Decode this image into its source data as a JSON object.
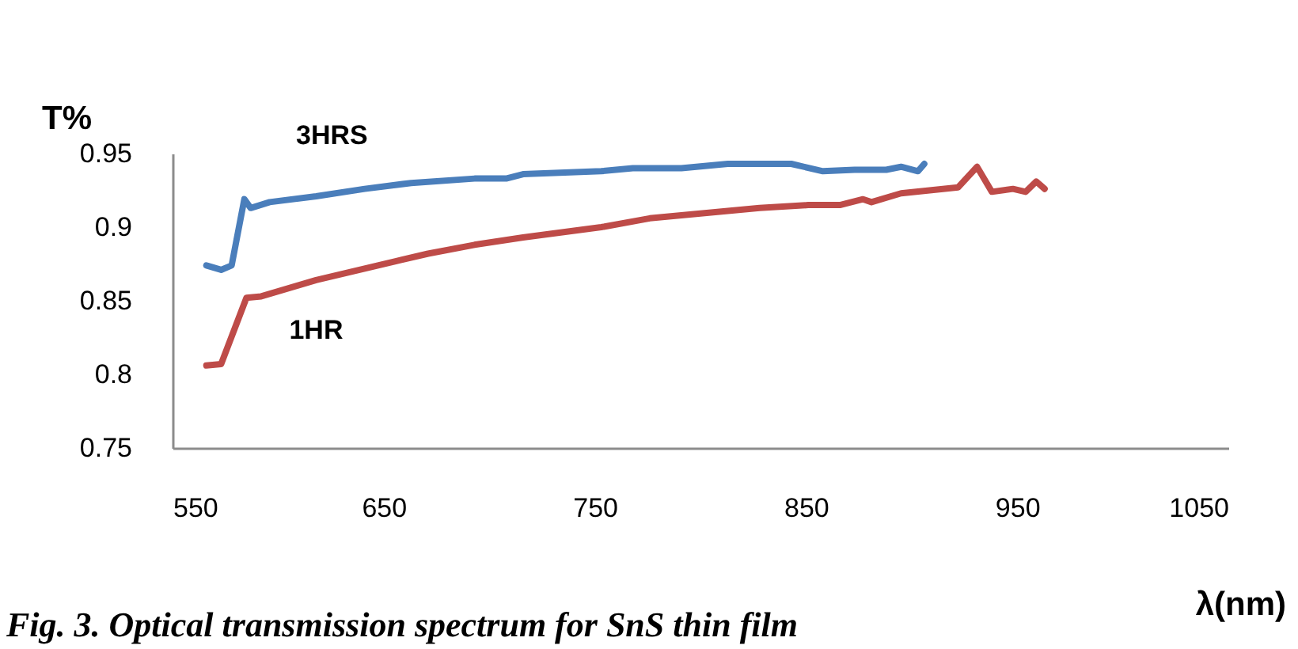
{
  "chart_data": {
    "type": "line",
    "xlabel": "λ(nm)",
    "ylabel": "T%",
    "annotations": [
      "Fig. 3. Optical transmission spectrum for  SnS thin film"
    ],
    "xlim": [
      550,
      1050
    ],
    "xticks": [
      550,
      650,
      750,
      850,
      950,
      1050
    ],
    "ylim": [
      0.75,
      0.95
    ],
    "yticks": [
      0.75,
      0.8,
      0.85,
      0.9,
      0.95
    ],
    "grid": false,
    "marker": "none",
    "line_style": "solid",
    "series": [
      {
        "name": "3HRS",
        "color": "#4a7ebb",
        "x": [
          566,
          573,
          578,
          584,
          587,
          596,
          618,
          641,
          663,
          693,
          708,
          716,
          753,
          768,
          791,
          813,
          843,
          858,
          873,
          888,
          895,
          903,
          906
        ],
        "values": [
          0.874,
          0.871,
          0.874,
          0.919,
          0.913,
          0.917,
          0.921,
          0.926,
          0.93,
          0.933,
          0.933,
          0.936,
          0.938,
          0.94,
          0.94,
          0.943,
          0.943,
          0.938,
          0.939,
          0.939,
          0.941,
          0.938,
          0.943
        ]
      },
      {
        "name": "1HR",
        "color": "#be4b48",
        "x": [
          566,
          573,
          585,
          592,
          618,
          656,
          671,
          693,
          716,
          753,
          776,
          798,
          828,
          851,
          866,
          877,
          881,
          895,
          922,
          931,
          938,
          948,
          954,
          959,
          963
        ],
        "values": [
          0.806,
          0.807,
          0.852,
          0.853,
          0.864,
          0.877,
          0.882,
          0.888,
          0.893,
          0.9,
          0.906,
          0.909,
          0.913,
          0.915,
          0.915,
          0.919,
          0.917,
          0.923,
          0.927,
          0.941,
          0.924,
          0.926,
          0.924,
          0.931,
          0.926
        ]
      }
    ]
  }
}
